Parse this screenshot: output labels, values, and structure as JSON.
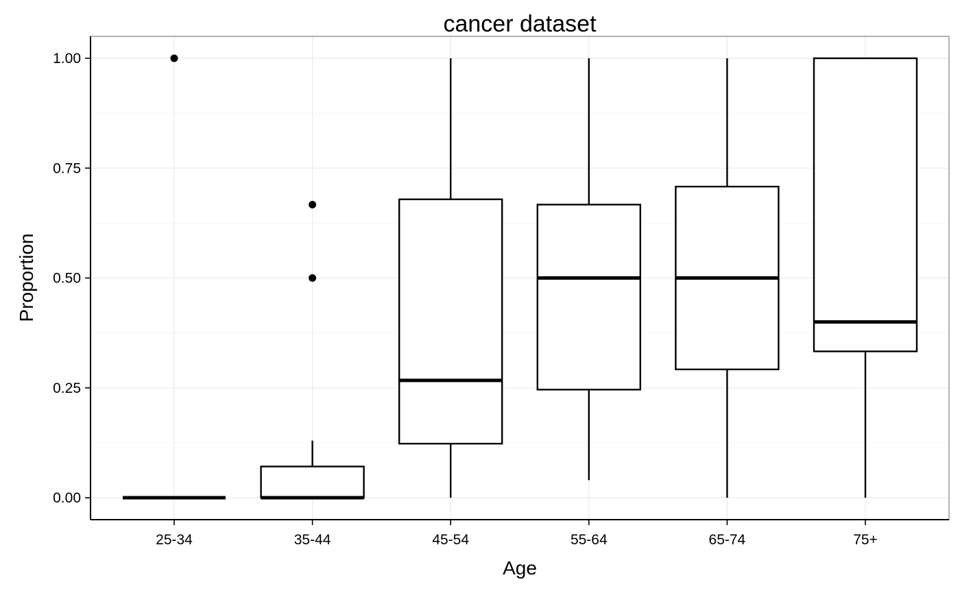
{
  "chart_data": {
    "type": "box",
    "title": "cancer dataset",
    "xlabel": "Age",
    "ylabel": "Proportion",
    "ylim": [
      -0.05,
      1.05
    ],
    "y_ticks": [
      "0.00",
      "0.25",
      "0.50",
      "0.75",
      "1.00"
    ],
    "y_tick_values": [
      0,
      0.25,
      0.5,
      0.75,
      1.0
    ],
    "y_minor_grid": [
      0.125,
      0.375,
      0.625,
      0.875
    ],
    "grid": true,
    "categories": [
      "25-34",
      "35-44",
      "45-54",
      "55-64",
      "65-74",
      "75+"
    ],
    "boxes": [
      {
        "category": "25-34",
        "whisker_low": 0.0,
        "q1": 0.0,
        "median": 0.0,
        "q3": 0.0,
        "whisker_high": 0.0,
        "outliers": [
          1.0
        ]
      },
      {
        "category": "35-44",
        "whisker_low": 0.0,
        "q1": 0.0,
        "median": 0.0,
        "q3": 0.071,
        "whisker_high": 0.13,
        "outliers": [
          0.5,
          0.667
        ]
      },
      {
        "category": "45-54",
        "whisker_low": 0.0,
        "q1": 0.123,
        "median": 0.267,
        "q3": 0.679,
        "whisker_high": 1.0,
        "outliers": []
      },
      {
        "category": "55-64",
        "whisker_low": 0.04,
        "q1": 0.246,
        "median": 0.5,
        "q3": 0.667,
        "whisker_high": 1.0,
        "outliers": []
      },
      {
        "category": "65-74",
        "whisker_low": 0.0,
        "q1": 0.292,
        "median": 0.5,
        "q3": 0.708,
        "whisker_high": 1.0,
        "outliers": []
      },
      {
        "category": "75+",
        "whisker_low": 0.0,
        "q1": 0.333,
        "median": 0.4,
        "q3": 1.0,
        "whisker_high": 1.0,
        "outliers": []
      }
    ],
    "colors": {
      "box_line": "#000000",
      "box_fill": "#ffffff",
      "grid_major": "#ebebeb",
      "grid_minor": "#f5f5f5",
      "panel_border": "#7f7f7f"
    }
  }
}
